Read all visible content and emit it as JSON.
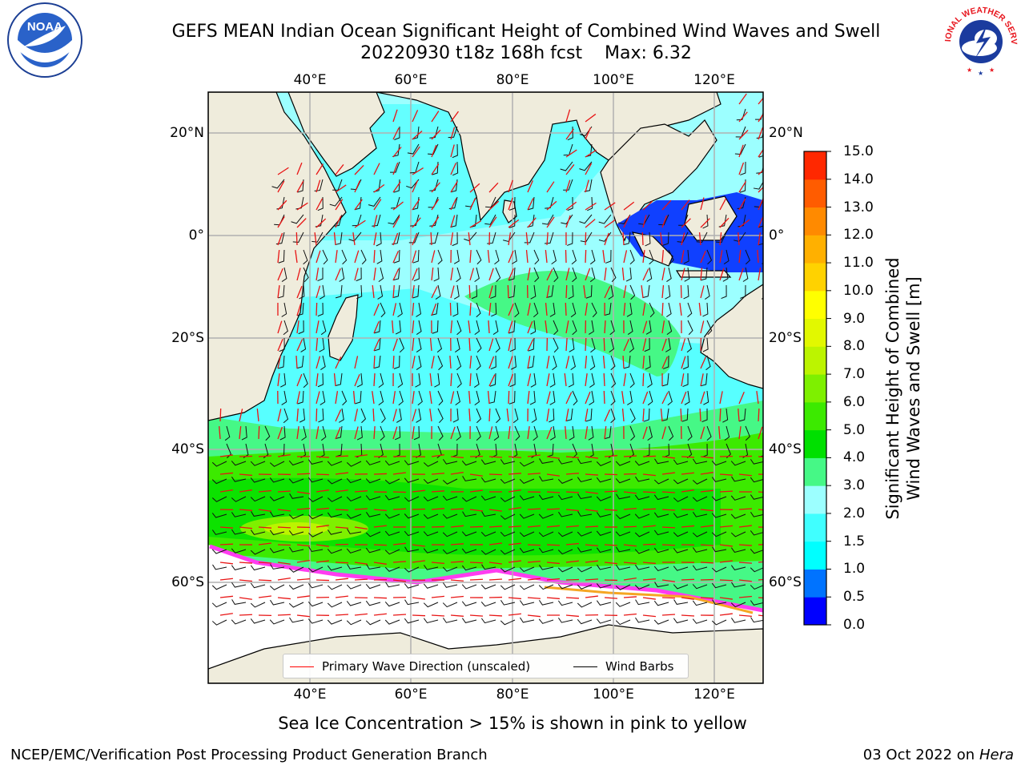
{
  "header": {
    "title_line1": "GEFS MEAN Indian Ocean Significant Height of Combined Wind Waves and Swell",
    "title_line2": "20220930 t18z 168h fcst    Max: 6.32",
    "noaa_logo": "NOAA",
    "nws_logo": "NATIONAL WEATHER SERVICE"
  },
  "map": {
    "lon_labels": [
      "40°E",
      "60°E",
      "80°E",
      "100°E",
      "120°E"
    ],
    "lat_labels": [
      "20°N",
      "0°",
      "20°S",
      "40°S",
      "60°S"
    ],
    "colors": {
      "land": "#efecdc",
      "ice_free": "#ffffff",
      "calm_blue": "#1040ff",
      "sea_ice": "#ff3cf0"
    }
  },
  "legend": {
    "primary_wave": "Primary Wave Direction (unscaled)",
    "wind_barbs": "Wind Barbs"
  },
  "colorbar": {
    "title_line1": "Significant Height of Combined",
    "title_line2": "Wind Waves and Swell [m]",
    "labels": [
      "0.0",
      "0.5",
      "1.0",
      "1.5",
      "2.0",
      "3.0",
      "4.0",
      "5.0",
      "6.0",
      "7.0",
      "8.0",
      "9.0",
      "10.0",
      "11.0",
      "12.0",
      "13.0",
      "14.0",
      "15.0"
    ],
    "colors": [
      "#0000ff",
      "#0073ff",
      "#00ffff",
      "#40ffff",
      "#9cffff",
      "#46f886",
      "#00e000",
      "#3cea00",
      "#7ef000",
      "#bcf400",
      "#e2f800",
      "#ffff00",
      "#ffd200",
      "#ffb000",
      "#ff8a00",
      "#ff5c00",
      "#ff2800"
    ]
  },
  "caption": "Sea Ice Concentration > 15% is shown in pink to yellow",
  "footer": {
    "left": "NCEP/EMC/Verification Post Processing Product Generation Branch",
    "right_date": "03 Oct 2022 on",
    "right_host": "Hera"
  }
}
